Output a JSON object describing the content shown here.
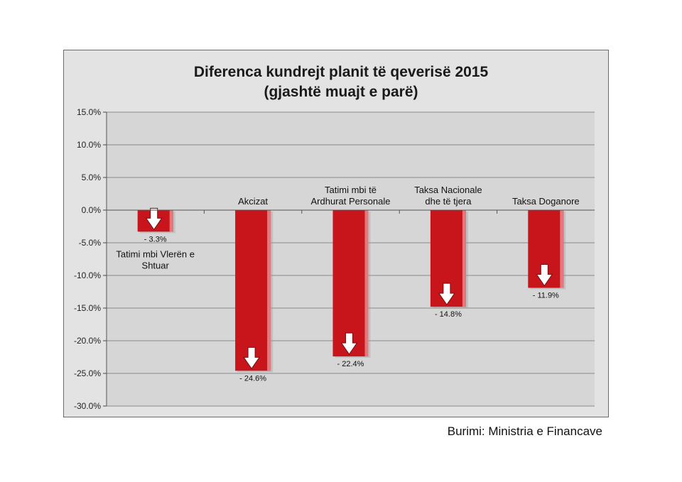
{
  "chart_data": {
    "type": "bar",
    "title_lines": [
      "Diferenca kundrejt planit të qeverisë 2015",
      "(gjashtë muajt e parë)"
    ],
    "xlabel": "",
    "ylabel": "",
    "ylim": [
      -30,
      15
    ],
    "y_ticks": [
      15,
      10,
      5,
      0,
      -5,
      -10,
      -15,
      -20,
      -25,
      -30
    ],
    "y_tick_labels": [
      "15.0%",
      "10.0%",
      "5.0%",
      "0.0%",
      "-5.0%",
      "-10.0%",
      "-15.0%",
      "-20.0%",
      "-25.0%",
      "-30.0%"
    ],
    "grid": true,
    "categories": [
      [
        "Tatimi mbi Vlerën e",
        "Shtuar"
      ],
      [
        "Akcizat"
      ],
      [
        "Tatimi mbi të",
        "Ardhurat Personale"
      ],
      [
        "Taksa Nacionale",
        "dhe të tjera"
      ],
      [
        "Taksa Doganore"
      ]
    ],
    "values": [
      -3.3,
      -24.6,
      -22.4,
      -14.8,
      -11.9
    ],
    "value_labels": [
      "- 3.3%",
      "-  24.6%",
      "-   22.4%",
      "- 14.8%",
      "- 11.9%"
    ],
    "bar_color": "#c8141b",
    "bar_edge_color": "#e2797d",
    "arrow_icon": "down-arrow-icon"
  },
  "source": "Burimi: Ministria e Financave"
}
